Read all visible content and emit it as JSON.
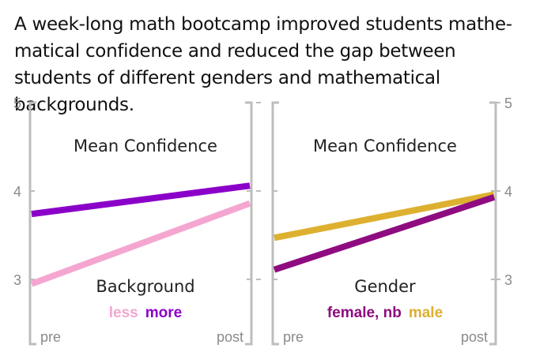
{
  "headline": "A week-long math bootcamp improved students mathe-matical confidence and reduced the gap between students of different genders and mathematical backgrounds.",
  "chart_data": [
    {
      "type": "line",
      "title": "Mean Confidence",
      "group_label": "Background",
      "x": [
        "pre",
        "post"
      ],
      "yticks": [
        "5",
        "4",
        "3"
      ],
      "ylim": [
        2.4,
        5
      ],
      "series": [
        {
          "name": "more",
          "color": "#8B00C9",
          "values": [
            3.74,
            4.06
          ]
        },
        {
          "name": "less",
          "color": "#F4A6D0",
          "values": [
            2.95,
            3.86
          ]
        }
      ],
      "legend": [
        {
          "name": "less",
          "color": "#F4A6D0"
        },
        {
          "name": "more",
          "color": "#8B00C9"
        }
      ]
    },
    {
      "type": "line",
      "title": "Mean Confidence",
      "group_label": "Gender",
      "x": [
        "pre",
        "post"
      ],
      "yticks": [
        "5",
        "4",
        "3"
      ],
      "ylim": [
        2.4,
        5
      ],
      "series": [
        {
          "name": "male",
          "color": "#DDB030",
          "values": [
            3.47,
            3.96
          ]
        },
        {
          "name": "female, nb",
          "color": "#8E0C80",
          "values": [
            3.11,
            3.93
          ]
        }
      ],
      "legend": [
        {
          "name": "female, nb",
          "color": "#8E0C80"
        },
        {
          "name": "male",
          "color": "#DDB030"
        }
      ]
    }
  ]
}
